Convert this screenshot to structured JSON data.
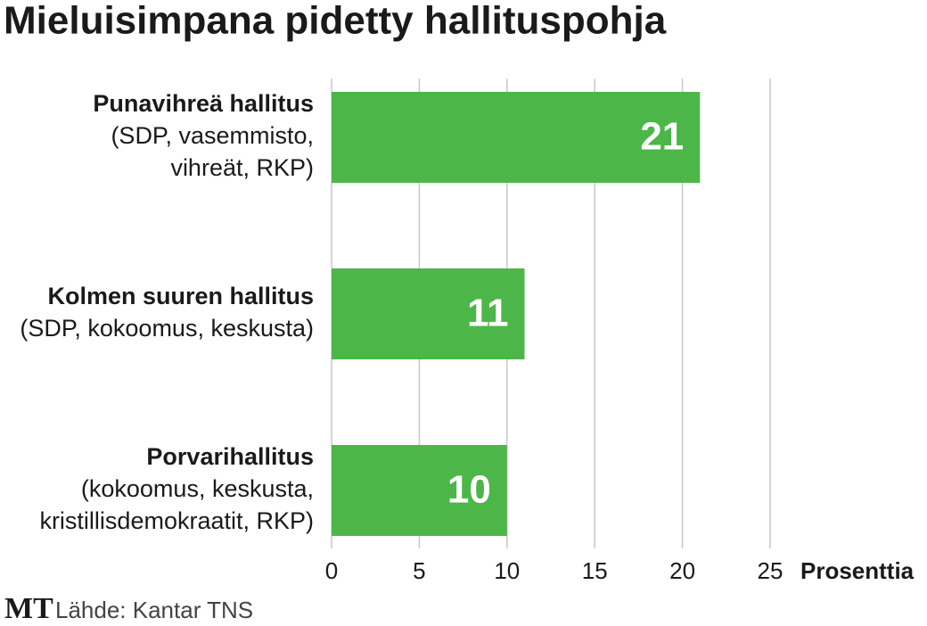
{
  "chart_data": {
    "type": "bar",
    "orientation": "horizontal",
    "title": "Mieluisimpana pidetty hallituspohja",
    "categories": [
      {
        "name": "Punavihreä hallitus",
        "detail": [
          "(SDP, vasemmisto,",
          "vihreät, RKP)"
        ]
      },
      {
        "name": "Kolmen suuren hallitus",
        "detail": [
          "(SDP, kokoomus, keskusta)"
        ]
      },
      {
        "name": "Porvarihallitus",
        "detail": [
          "(kokoomus, keskusta,",
          "kristillisdemokraatit, RKP)"
        ]
      }
    ],
    "values": [
      21,
      11,
      10
    ],
    "color": "#4cb748",
    "xlim": [
      0,
      25
    ],
    "xticks": [
      0,
      5,
      10,
      15,
      20,
      25
    ],
    "xlabel": "Prosenttia",
    "grid": true,
    "logo": "MT",
    "source": "Lähde: Kantar TNS"
  }
}
